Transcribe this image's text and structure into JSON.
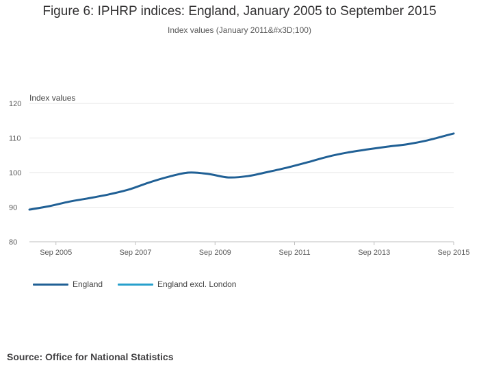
{
  "chart_data": {
    "type": "line",
    "title": "Figure 6: IPHRP indices: England, January 2005 to September 2015",
    "subtitle": "Index values (January 2011&#x3D;100)",
    "ylabel": "Index values",
    "xlabel": "",
    "ylim": [
      80,
      120
    ],
    "yticks": [
      "80",
      "90",
      "100",
      "110",
      "120"
    ],
    "xlim": [
      "2005-01",
      "2015-09"
    ],
    "xticks": [
      {
        "date": "2005-09",
        "label": "Sep 2005"
      },
      {
        "date": "2007-09",
        "label": "Sep 2007"
      },
      {
        "date": "2009-09",
        "label": "Sep 2009"
      },
      {
        "date": "2011-09",
        "label": "Sep 2011"
      },
      {
        "date": "2013-09",
        "label": "Sep 2013"
      },
      {
        "date": "2015-09",
        "label": "Sep 2015"
      }
    ],
    "grid": true,
    "legend_position": "bottom-left",
    "series": [
      {
        "name": "England",
        "color": "#206095",
        "x": [
          "2005-01",
          "2005-07",
          "2006-01",
          "2006-07",
          "2007-01",
          "2007-07",
          "2008-01",
          "2008-07",
          "2009-01",
          "2009-07",
          "2010-01",
          "2010-07",
          "2011-01",
          "2011-07",
          "2012-01",
          "2012-07",
          "2013-01",
          "2013-07",
          "2014-01",
          "2014-07",
          "2015-01",
          "2015-07",
          "2015-09"
        ],
        "y": [
          89.3,
          90.3,
          91.6,
          92.6,
          93.7,
          95.1,
          97.1,
          98.8,
          100.0,
          99.6,
          98.6,
          99.0,
          100.2,
          101.5,
          103.0,
          104.6,
          105.8,
          106.7,
          107.5,
          108.2,
          109.3,
          110.8,
          111.3
        ]
      },
      {
        "name": "England excl. London",
        "color": "#27a0cc",
        "x": [],
        "y": []
      }
    ]
  },
  "source": "Source: Office for National Statistics"
}
